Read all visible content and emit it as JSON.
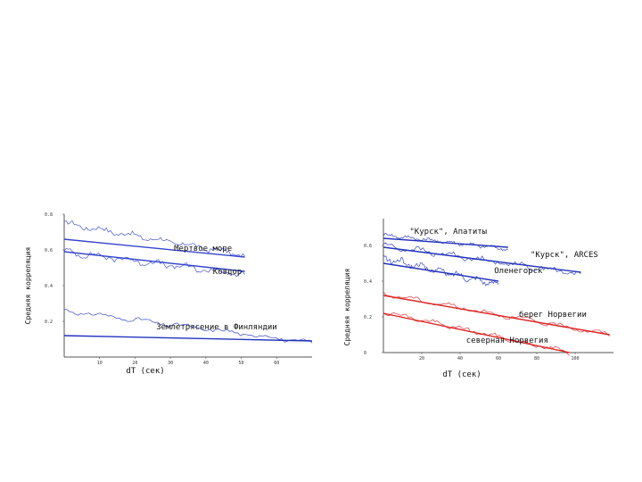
{
  "chart_data": [
    {
      "type": "line",
      "xlabel": "dT (сек)",
      "ylabel": "Средняя корреляция",
      "xlim": [
        0,
        70
      ],
      "ylim": [
        0,
        0.8
      ],
      "xticks": [
        10,
        20,
        30,
        40,
        50,
        60
      ],
      "yticks": [
        0.2,
        0.4,
        0.6,
        0.8
      ],
      "yticklabels": [
        "0.2",
        "0.4",
        "0.6",
        "0.8"
      ],
      "grid": false,
      "series": [
        {
          "name": "Мертвое море",
          "color": "#3344cc",
          "fit": [
            [
              0,
              0.66
            ],
            [
              51,
              0.56
            ]
          ],
          "noisy": {
            "start": 0.75,
            "end": 0.57,
            "amp": 0.02,
            "x0": 0,
            "x1": 51
          }
        },
        {
          "name": "Ковдор",
          "color": "#3344cc",
          "fit": [
            [
              0,
              0.59
            ],
            [
              51,
              0.48
            ]
          ],
          "noisy": {
            "start": 0.59,
            "end": 0.46,
            "amp": 0.022,
            "x0": 0,
            "x1": 51
          }
        },
        {
          "name": "Землетрясение в Финляндии",
          "color": "#2233bb",
          "fit": [
            [
              0,
              0.12
            ],
            [
              70,
              0.09
            ]
          ],
          "noisy": {
            "start": 0.26,
            "end": 0.08,
            "amp": 0.015,
            "x0": 0,
            "x1": 70
          }
        }
      ],
      "annotations": [
        {
          "text": "Мертвое море",
          "x": 31,
          "y": 0.595
        },
        {
          "text": "Ковдор",
          "x": 42,
          "y": 0.465
        },
        {
          "text": "Землетрясение в Финляндии",
          "x": 26,
          "y": 0.155
        }
      ]
    },
    {
      "type": "line",
      "xlabel": "dT (сек)",
      "ylabel": "Средняя корреляция",
      "xlim": [
        0,
        120
      ],
      "ylim": [
        0,
        0.75
      ],
      "xticks": [
        20,
        40,
        60,
        80,
        100
      ],
      "xticklabels": [
        "20",
        "40",
        "60",
        "80",
        "100"
      ],
      "yticks": [
        0,
        0.2,
        0.4,
        0.6
      ],
      "yticklabels": [
        "0",
        "0.2",
        "0.4",
        "0.6"
      ],
      "grid": false,
      "series": [
        {
          "name": "\"Курск\", Апатиты",
          "color": "#2233bb",
          "fit": [
            [
              0,
              0.64
            ],
            [
              65,
              0.59
            ]
          ],
          "noisy": {
            "start": 0.66,
            "end": 0.58,
            "amp": 0.012,
            "x0": 0,
            "x1": 65
          }
        },
        {
          "name": "\"Курск\", ARCES",
          "color": "#2233bb",
          "fit": [
            [
              0,
              0.59
            ],
            [
              103,
              0.45
            ]
          ],
          "noisy": {
            "start": 0.6,
            "end": 0.44,
            "amp": 0.02,
            "x0": 0,
            "x1": 103
          }
        },
        {
          "name": "Оленегорск",
          "color": "#2233bb",
          "fit": [
            [
              0,
              0.5
            ],
            [
              60,
              0.4
            ]
          ],
          "noisy": {
            "start": 0.53,
            "end": 0.38,
            "amp": 0.022,
            "x0": 0,
            "x1": 60
          }
        },
        {
          "name": "берег Норвегии",
          "color": "#dd2222",
          "fit": [
            [
              0,
              0.32
            ],
            [
              118,
              0.1
            ]
          ],
          "noisy": {
            "start": 0.33,
            "end": 0.1,
            "amp": 0.015,
            "x0": 0,
            "x1": 118
          }
        },
        {
          "name": "северная Норвегия",
          "color": "#dd2222",
          "fit": [
            [
              0,
              0.22
            ],
            [
              97,
              0.0
            ]
          ],
          "noisy": {
            "start": 0.23,
            "end": 0.0,
            "amp": 0.015,
            "x0": 0,
            "x1": 97
          }
        }
      ],
      "annotations": [
        {
          "text": "\"Курск\", Апатиты",
          "x": 54,
          "y": 0.665
        },
        {
          "text": "\"Курск\", ARCES",
          "x": 112,
          "y": 0.535
        },
        {
          "text": "Оленегорск",
          "x": 83,
          "y": 0.445
        },
        {
          "text": "берег Норвегии",
          "x": 106,
          "y": 0.2
        },
        {
          "text": "северная Норвегия",
          "x": 86,
          "y": 0.055
        }
      ]
    }
  ]
}
